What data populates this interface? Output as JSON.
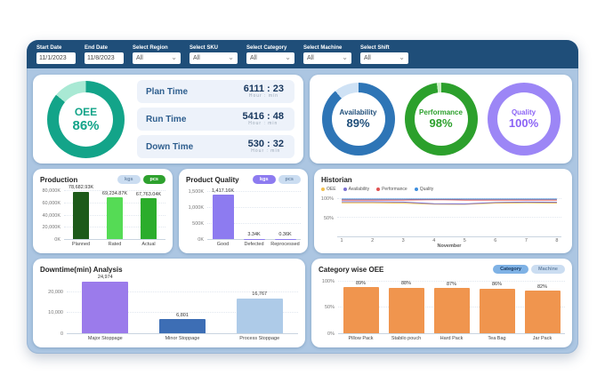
{
  "filters": {
    "items": [
      {
        "label": "Start Date",
        "value": "11/1/2023",
        "type": "date"
      },
      {
        "label": "End Date",
        "value": "11/8/2023",
        "type": "date"
      },
      {
        "label": "Select Region",
        "value": "All",
        "type": "dropdown"
      },
      {
        "label": "Select SKU",
        "value": "All",
        "type": "dropdown"
      },
      {
        "label": "Select Category",
        "value": "All",
        "type": "dropdown"
      },
      {
        "label": "Select Machine",
        "value": "All",
        "type": "dropdown"
      },
      {
        "label": "Select Shift",
        "value": "All",
        "type": "dropdown"
      }
    ]
  },
  "oee": {
    "label": "OEE",
    "value": "86%",
    "percent": 86,
    "color": "#13A489",
    "track": "#A9E9D4",
    "text": "#13A489"
  },
  "times": [
    {
      "label": "Plan Time",
      "value": "6111 : 23",
      "unit": "Hour : min"
    },
    {
      "label": "Run Time",
      "value": "5416 : 48",
      "unit": "Hour : min"
    },
    {
      "label": "Down Time",
      "value": "530 : 32",
      "unit": "Hour : min"
    }
  ],
  "kpis": [
    {
      "label": "Availability",
      "value": "89%",
      "percent": 89,
      "color": "#2E75B6",
      "track": "#CFE2F5",
      "text": "#1F4E79"
    },
    {
      "label": "Performance",
      "value": "98%",
      "percent": 98,
      "color": "#2CA02C",
      "track": "#C9EFC2",
      "text": "#2CA02C"
    },
    {
      "label": "Quality",
      "value": "100%",
      "percent": 100,
      "color": "#9C86F6",
      "track": "#E5DEFC",
      "text": "#8B63F5"
    }
  ],
  "chart_data": [
    {
      "type": "bar",
      "title": "Production",
      "unit_toggles": [
        {
          "label": "kgs",
          "active": false
        },
        {
          "label": "pcs",
          "active": true,
          "color": "#2EA12E"
        }
      ],
      "categories": [
        "Planned",
        "Rated",
        "Actual"
      ],
      "values": [
        78682.93,
        69234.87,
        67763.04
      ],
      "value_labels": [
        "78,682.93K",
        "69,234.87K",
        "67,763.04K"
      ],
      "colors": [
        "#1D5A1A",
        "#55DB55",
        "#2BAD2B"
      ],
      "yticks": [
        {
          "label": "0K",
          "value": 0
        },
        {
          "label": "20,000K",
          "value": 20000
        },
        {
          "label": "40,000K",
          "value": 40000
        },
        {
          "label": "60,000K",
          "value": 60000
        },
        {
          "label": "80,000K",
          "value": 80000
        }
      ],
      "ymax": 86000
    },
    {
      "type": "bar",
      "title": "Product Quality",
      "unit_toggles": [
        {
          "label": "kgs",
          "active": true,
          "color": "#8D7BF0"
        },
        {
          "label": "pcs",
          "active": false
        }
      ],
      "categories": [
        "Good",
        "Defected",
        "Reprocessed"
      ],
      "values": [
        1417.16,
        3.34,
        0.36
      ],
      "value_labels": [
        "1,417.16K",
        "3.34K",
        "0.36K"
      ],
      "colors": [
        "#8D7BF0",
        "#8D7BF0",
        "#8D7BF0"
      ],
      "yticks": [
        {
          "label": "0K",
          "value": 0
        },
        {
          "label": "500K",
          "value": 500
        },
        {
          "label": "1,000K",
          "value": 1000
        },
        {
          "label": "1,500K",
          "value": 1500
        }
      ],
      "ymax": 1650
    },
    {
      "type": "line",
      "title": "Historian",
      "xlabel": "November",
      "x": [
        "1",
        "2",
        "3",
        "4",
        "5",
        "6",
        "7",
        "8"
      ],
      "series": [
        {
          "name": "OEE",
          "color": "#F2C04D",
          "values": [
            90,
            90,
            89,
            86.5,
            86,
            89,
            90,
            89.5
          ]
        },
        {
          "name": "Availability",
          "color": "#7A6FD1",
          "values": [
            93,
            93,
            92,
            87.5,
            87,
            91,
            92,
            91.5
          ]
        },
        {
          "name": "Performance",
          "color": "#E05252",
          "values": [
            97.5,
            97.5,
            97.5,
            98.5,
            97.5,
            97.5,
            97.5,
            97.5
          ]
        },
        {
          "name": "Quality",
          "color": "#3E8EDE",
          "values": [
            100,
            100,
            100,
            100,
            100,
            100,
            100,
            100
          ]
        }
      ],
      "yticks": [
        {
          "label": "50%",
          "value": 50
        },
        {
          "label": "100%",
          "value": 100
        }
      ],
      "ymax": 112
    },
    {
      "type": "bar",
      "title": "Downtime(min) Analysis",
      "categories": [
        "Major Stoppage",
        "Minor Stoppage",
        "Process Stoppage"
      ],
      "values": [
        24974,
        6801,
        16767
      ],
      "value_labels": [
        "24,974",
        "6,801",
        "16,767"
      ],
      "colors": [
        "#9B7BEB",
        "#3D6EB5",
        "#AECBE8"
      ],
      "yticks": [
        {
          "label": "0",
          "value": 0
        },
        {
          "label": "10,000",
          "value": 10000
        },
        {
          "label": "20,000",
          "value": 20000
        }
      ],
      "ymax": 27000
    },
    {
      "type": "bar",
      "title": "Category wise OEE",
      "view_toggles": [
        {
          "label": "Category",
          "active": true,
          "color": "#7FB2E5",
          "text": "#17375E"
        },
        {
          "label": "Machine",
          "active": false
        }
      ],
      "categories": [
        "Pillow Pack",
        "Stabilo pouch",
        "Hard Pack",
        "Tea Bag",
        "Jar Pack"
      ],
      "values": [
        89,
        88,
        87,
        86,
        82
      ],
      "value_labels": [
        "89%",
        "88%",
        "87%",
        "86%",
        "82%"
      ],
      "colors": [
        "#F0954E",
        "#F0954E",
        "#F0954E",
        "#F0954E",
        "#F0954E"
      ],
      "yticks": [
        {
          "label": "0%",
          "value": 0
        },
        {
          "label": "50%",
          "value": 50
        },
        {
          "label": "100%",
          "value": 100
        }
      ],
      "ymax": 108
    }
  ]
}
